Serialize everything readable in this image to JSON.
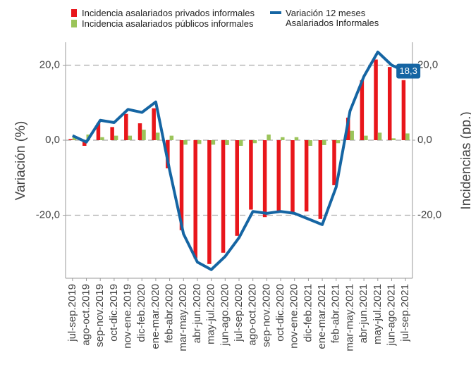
{
  "chart_data": {
    "type": "bar-line",
    "categories": [
      "jul-sep.2019",
      "ago-oct.2019",
      "sep-nov.2019",
      "oct-dic.2019",
      "nov-ene.2019",
      "dic-feb.2020",
      "ene-mar.2020",
      "feb-abr.2020",
      "mar-may.2020",
      "abr-jun.2020",
      "may-jul.2020",
      "jun-ago.2020",
      "jul-sep.2020",
      "ago-oct.2020",
      "sep-nov.2020",
      "oct-dic.2020",
      "nov-ene.2020",
      "dic-feb.2021",
      "ene-mar.2021",
      "feb-abr.2021",
      "mar-may.2021",
      "abr-jun.2021",
      "may-jul.2021",
      "jun-ago.2021",
      "jul-sep.2021"
    ],
    "series": [
      {
        "name": "Incidencia asalariados privados informales",
        "color": "#e8161b",
        "kind": "bar",
        "axis": "y2",
        "values": [
          0.3,
          -1.5,
          4.5,
          3.5,
          7,
          4.5,
          8.5,
          -7.5,
          -24,
          -31.5,
          -33,
          -30,
          -25.5,
          -18.5,
          -20.5,
          -19,
          -19.5,
          -19,
          -21,
          -12,
          6,
          16,
          21.5,
          19.5,
          16
        ]
      },
      {
        "name": "Incidencia asalariados públicos informales",
        "color": "#9bc45a",
        "kind": "bar",
        "axis": "y2",
        "values": [
          1,
          1.5,
          0.8,
          1.2,
          1.2,
          2.8,
          2,
          1.2,
          -1.2,
          -1,
          -1.2,
          -1.3,
          -1.5,
          -0.8,
          1.5,
          0.8,
          0.8,
          -1.5,
          -1.3,
          -0.8,
          2.5,
          1.2,
          2,
          0.5,
          1.8
        ]
      },
      {
        "name": "Variación 12 meses\nAsalariados Informales",
        "color": "#1565a3",
        "kind": "line",
        "values": [
          1.2,
          -0.5,
          5.3,
          4.7,
          8.2,
          7.4,
          10.2,
          -8,
          -25,
          -32.5,
          -34.5,
          -31,
          -26,
          -19,
          -19.5,
          -19,
          -19.5,
          -21,
          -22.5,
          -12.5,
          7.8,
          17,
          23.5,
          20,
          18.3
        ],
        "value_labels": [
          null,
          null,
          null,
          null,
          null,
          null,
          null,
          null,
          null,
          null,
          null,
          null,
          null,
          null,
          null,
          null,
          null,
          null,
          null,
          null,
          null,
          null,
          null,
          null,
          "18,3"
        ]
      }
    ],
    "y_label": "Variación (%)",
    "y2_label": "Incidencias (pp.)",
    "ylim": [
      -36.8,
      26.1
    ],
    "yticks": [
      {
        "value": -20,
        "label": "-20,0"
      },
      {
        "value": 0,
        "label": "0,0"
      },
      {
        "value": 20,
        "label": "20,0"
      }
    ],
    "y2lim": [
      -36.8,
      26.1
    ],
    "y2ticks": [
      {
        "value": -20,
        "label": "-20,0"
      },
      {
        "value": 0,
        "label": "0,0"
      },
      {
        "value": 20,
        "label": "20,0"
      }
    ],
    "grid": true
  }
}
